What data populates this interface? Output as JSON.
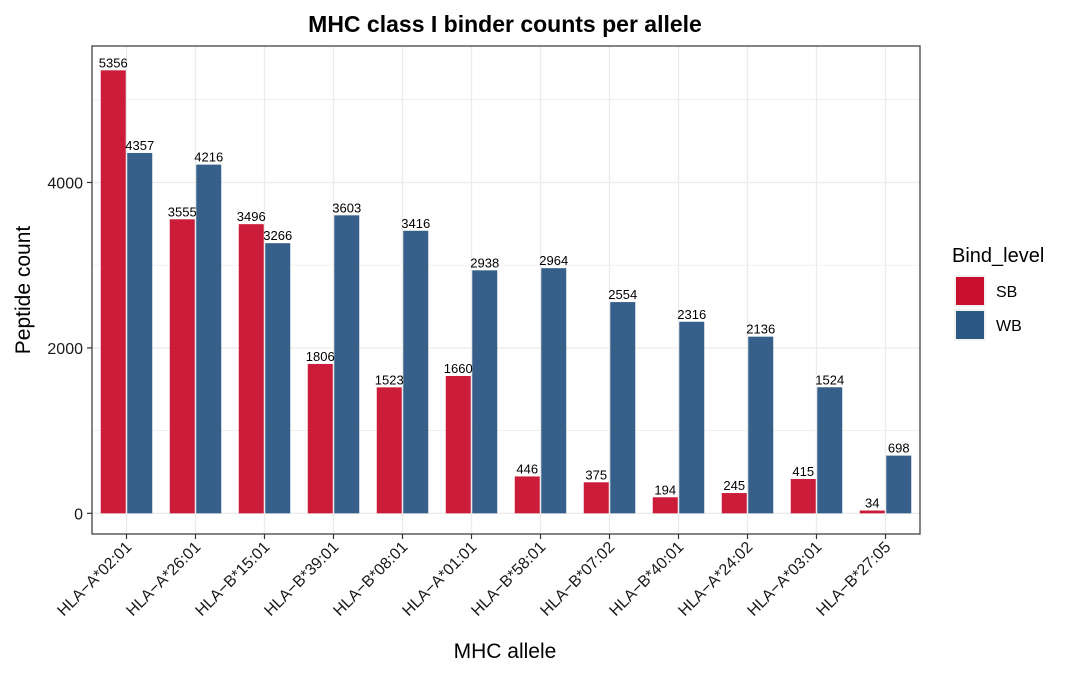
{
  "chart_data": {
    "type": "bar",
    "title": "MHC class I binder counts per allele",
    "xlabel": "MHC allele",
    "ylabel": "Peptide count",
    "categories": [
      "HLA−A*02:01",
      "HLA−A*26:01",
      "HLA−B*15:01",
      "HLA−B*39:01",
      "HLA−B*08:01",
      "HLA−A*01:01",
      "HLA−B*58:01",
      "HLA−B*07:02",
      "HLA−B*40:01",
      "HLA−A*24:02",
      "HLA−A*03:01",
      "HLA−B*27:05"
    ],
    "series": [
      {
        "name": "SB",
        "color": "#c8102e",
        "values": [
          5356,
          3555,
          3496,
          1806,
          1523,
          1660,
          446,
          375,
          194,
          245,
          415,
          34
        ]
      },
      {
        "name": "WB",
        "color": "#2b5783",
        "values": [
          4357,
          4216,
          3266,
          3603,
          3416,
          2938,
          2964,
          2554,
          2316,
          2136,
          1524,
          698
        ]
      }
    ],
    "ylim": [
      -250,
      5650
    ],
    "yticks": [
      0,
      2000,
      4000
    ],
    "grid": true,
    "legend": {
      "title": "Bind_level",
      "placement": "right"
    }
  }
}
